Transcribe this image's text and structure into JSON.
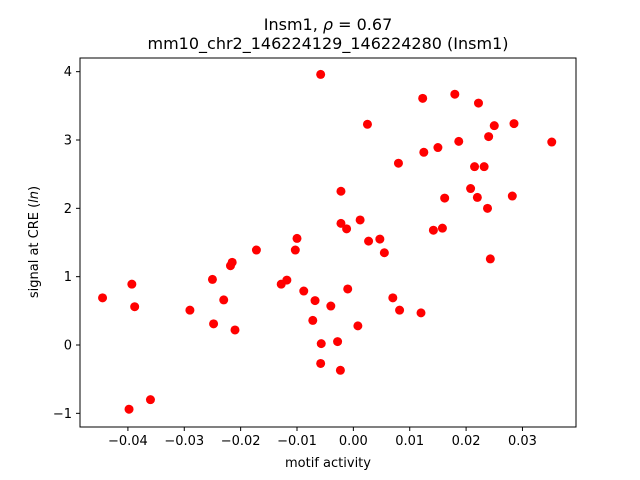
{
  "chart_data": {
    "type": "scatter",
    "title_line1": "Insm1, ρ = 0.67",
    "title_line2": "mm10_chr2_146224129_146224280 (Insm1)",
    "xlabel": "motif activity",
    "ylabel": "signal at CRE (ln)",
    "xlim": [
      -0.0485,
      0.0395
    ],
    "ylim": [
      -1.2,
      4.2
    ],
    "xticks": [
      -0.04,
      -0.03,
      -0.02,
      -0.01,
      0.0,
      0.01,
      0.02,
      0.03
    ],
    "xtick_labels": [
      "−0.04",
      "−0.03",
      "−0.02",
      "−0.01",
      "0.00",
      "0.01",
      "0.02",
      "0.03"
    ],
    "yticks": [
      -1,
      0,
      1,
      2,
      3,
      4
    ],
    "ytick_labels": [
      "−1",
      "0",
      "1",
      "2",
      "3",
      "4"
    ],
    "marker_color": "#ff0000",
    "grid": false,
    "points": [
      {
        "x": -0.0445,
        "y": 0.69
      },
      {
        "x": -0.0398,
        "y": -0.94
      },
      {
        "x": -0.0393,
        "y": 0.89
      },
      {
        "x": -0.0388,
        "y": 0.56
      },
      {
        "x": -0.036,
        "y": -0.8
      },
      {
        "x": -0.029,
        "y": 0.51
      },
      {
        "x": -0.025,
        "y": 0.96
      },
      {
        "x": -0.0248,
        "y": 0.31
      },
      {
        "x": -0.023,
        "y": 0.66
      },
      {
        "x": -0.0218,
        "y": 1.16
      },
      {
        "x": -0.0215,
        "y": 1.21
      },
      {
        "x": -0.021,
        "y": 0.22
      },
      {
        "x": -0.0172,
        "y": 1.39
      },
      {
        "x": -0.0128,
        "y": 0.89
      },
      {
        "x": -0.0118,
        "y": 0.95
      },
      {
        "x": -0.0103,
        "y": 1.39
      },
      {
        "x": -0.01,
        "y": 1.56
      },
      {
        "x": -0.0088,
        "y": 0.79
      },
      {
        "x": -0.0072,
        "y": 0.36
      },
      {
        "x": -0.0068,
        "y": 0.65
      },
      {
        "x": -0.0058,
        "y": 3.96
      },
      {
        "x": -0.0057,
        "y": 0.02
      },
      {
        "x": -0.0058,
        "y": -0.27
      },
      {
        "x": -0.004,
        "y": 0.57
      },
      {
        "x": -0.0028,
        "y": 0.05
      },
      {
        "x": -0.0023,
        "y": -0.37
      },
      {
        "x": -0.0022,
        "y": 2.25
      },
      {
        "x": -0.0022,
        "y": 1.78
      },
      {
        "x": -0.0012,
        "y": 1.7
      },
      {
        "x": -0.001,
        "y": 0.82
      },
      {
        "x": 0.0008,
        "y": 0.28
      },
      {
        "x": 0.0012,
        "y": 1.83
      },
      {
        "x": 0.0025,
        "y": 3.23
      },
      {
        "x": 0.0027,
        "y": 1.52
      },
      {
        "x": 0.0047,
        "y": 1.55
      },
      {
        "x": 0.0055,
        "y": 1.35
      },
      {
        "x": 0.007,
        "y": 0.69
      },
      {
        "x": 0.008,
        "y": 2.66
      },
      {
        "x": 0.0082,
        "y": 0.51
      },
      {
        "x": 0.012,
        "y": 0.47
      },
      {
        "x": 0.0123,
        "y": 3.61
      },
      {
        "x": 0.0125,
        "y": 2.82
      },
      {
        "x": 0.0142,
        "y": 1.68
      },
      {
        "x": 0.015,
        "y": 2.89
      },
      {
        "x": 0.0158,
        "y": 1.71
      },
      {
        "x": 0.0162,
        "y": 2.15
      },
      {
        "x": 0.018,
        "y": 3.67
      },
      {
        "x": 0.0187,
        "y": 2.98
      },
      {
        "x": 0.0208,
        "y": 2.29
      },
      {
        "x": 0.0215,
        "y": 2.61
      },
      {
        "x": 0.022,
        "y": 2.16
      },
      {
        "x": 0.0222,
        "y": 3.54
      },
      {
        "x": 0.0232,
        "y": 2.61
      },
      {
        "x": 0.0238,
        "y": 2.0
      },
      {
        "x": 0.024,
        "y": 3.05
      },
      {
        "x": 0.0243,
        "y": 1.26
      },
      {
        "x": 0.025,
        "y": 3.21
      },
      {
        "x": 0.0282,
        "y": 2.18
      },
      {
        "x": 0.0285,
        "y": 3.24
      },
      {
        "x": 0.0352,
        "y": 2.97
      }
    ]
  }
}
